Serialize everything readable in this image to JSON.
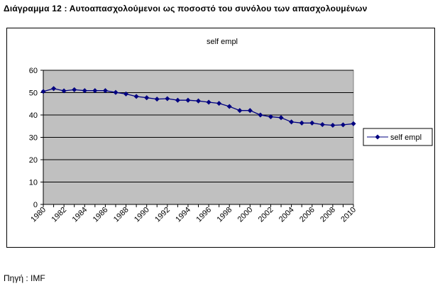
{
  "heading": "Διάγραμμα 12 : Αυτοαπασχολούμενοι ως ποσοστό του συνόλου των απασχολουμένων",
  "source": "Πηγή : IMF",
  "chart_data": {
    "type": "line",
    "title": "self empl",
    "xlabel": "",
    "ylabel": "",
    "x": [
      1980,
      1981,
      1982,
      1983,
      1984,
      1985,
      1986,
      1987,
      1988,
      1989,
      1990,
      1991,
      1992,
      1993,
      1994,
      1995,
      1996,
      1997,
      1998,
      1999,
      2000,
      2001,
      2002,
      2003,
      2004,
      2005,
      2006,
      2007,
      2008,
      2009,
      2010
    ],
    "series": [
      {
        "name": "self empl",
        "values": [
          50.5,
          51.8,
          50.8,
          51.3,
          50.9,
          50.9,
          50.9,
          50.1,
          49.4,
          48.3,
          47.7,
          47.1,
          47.3,
          46.6,
          46.6,
          46.3,
          45.7,
          45.2,
          43.8,
          42.0,
          42.0,
          40.0,
          39.2,
          38.8,
          36.9,
          36.4,
          36.4,
          35.7,
          35.4,
          35.6,
          36.1
        ],
        "color": "#000080"
      }
    ],
    "xticks": [
      "1980",
      "1982",
      "1984",
      "1986",
      "1988",
      "1990",
      "1992",
      "1994",
      "1996",
      "1998",
      "2000",
      "2002",
      "2004",
      "2006",
      "2008",
      "2010"
    ],
    "yticks": [
      "0",
      "10",
      "20",
      "30",
      "40",
      "50",
      "60"
    ],
    "ylim": [
      0,
      60
    ],
    "xlim": [
      1980,
      2010
    ],
    "grid": "horizontal",
    "plot_background": "#c0c0c0",
    "legend_position": "right"
  }
}
